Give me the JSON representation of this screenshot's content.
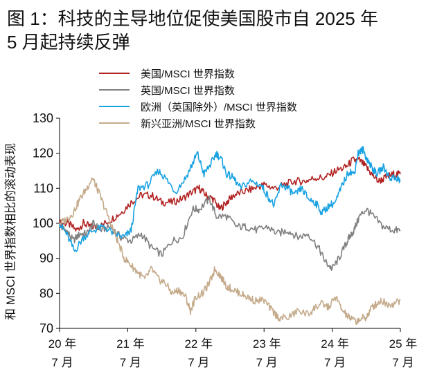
{
  "title": {
    "line1": "图 1：科技的主导地位促使美国股市自 2025 年",
    "line2": "5 月起持续反弹"
  },
  "chart_data": {
    "type": "line",
    "ylabel": "和 MSCI 世界指数相比的滚动表现",
    "ylim": [
      70,
      130
    ],
    "yticks": [
      70,
      80,
      90,
      100,
      110,
      120,
      130
    ],
    "xlim": [
      2020.5,
      2025.5
    ],
    "xticks": [
      {
        "x": 2020.5,
        "line1": "20 年",
        "line2": "7 月"
      },
      {
        "x": 2021.5,
        "line1": "21 年",
        "line2": "7 月"
      },
      {
        "x": 2022.5,
        "line1": "22 年",
        "line2": "7 月"
      },
      {
        "x": 2023.5,
        "line1": "23 年",
        "line2": "7 月"
      },
      {
        "x": 2024.5,
        "line1": "24 年",
        "line2": "7 月"
      },
      {
        "x": 2025.5,
        "line1": "25 年",
        "line2": "7 月"
      }
    ],
    "legend_position": "top",
    "series": [
      {
        "name": "美国/MSCI 世界指数",
        "color": "#b22222",
        "points": [
          [
            2020.5,
            100
          ],
          [
            2020.62,
            100
          ],
          [
            2020.75,
            98
          ],
          [
            2020.85,
            100
          ],
          [
            2020.95,
            99
          ],
          [
            2021.08,
            99
          ],
          [
            2021.25,
            101
          ],
          [
            2021.4,
            103
          ],
          [
            2021.55,
            106
          ],
          [
            2021.7,
            108
          ],
          [
            2021.85,
            108
          ],
          [
            2022.0,
            106
          ],
          [
            2022.15,
            106
          ],
          [
            2022.3,
            107
          ],
          [
            2022.45,
            109
          ],
          [
            2022.55,
            110
          ],
          [
            2022.65,
            108
          ],
          [
            2022.75,
            107
          ],
          [
            2022.85,
            104
          ],
          [
            2022.95,
            106
          ],
          [
            2023.05,
            108
          ],
          [
            2023.2,
            109
          ],
          [
            2023.35,
            110
          ],
          [
            2023.5,
            111
          ],
          [
            2023.65,
            110
          ],
          [
            2023.8,
            111
          ],
          [
            2023.95,
            112
          ],
          [
            2024.1,
            112
          ],
          [
            2024.25,
            113
          ],
          [
            2024.4,
            113
          ],
          [
            2024.55,
            115
          ],
          [
            2024.7,
            116
          ],
          [
            2024.8,
            118
          ],
          [
            2024.9,
            118
          ],
          [
            2025.0,
            116
          ],
          [
            2025.08,
            114
          ],
          [
            2025.18,
            112
          ],
          [
            2025.28,
            113
          ],
          [
            2025.4,
            114
          ],
          [
            2025.5,
            114
          ]
        ]
      },
      {
        "name": "英国/MSCI 世界指数",
        "color": "#7f7f7f",
        "points": [
          [
            2020.5,
            99
          ],
          [
            2020.6,
            98
          ],
          [
            2020.7,
            95
          ],
          [
            2020.8,
            97
          ],
          [
            2020.9,
            97
          ],
          [
            2021.0,
            100
          ],
          [
            2021.1,
            98
          ],
          [
            2021.25,
            99
          ],
          [
            2021.4,
            96
          ],
          [
            2021.55,
            95
          ],
          [
            2021.7,
            97
          ],
          [
            2021.85,
            93
          ],
          [
            2022.0,
            91
          ],
          [
            2022.15,
            95
          ],
          [
            2022.3,
            96
          ],
          [
            2022.45,
            104
          ],
          [
            2022.55,
            104
          ],
          [
            2022.7,
            107
          ],
          [
            2022.8,
            102
          ],
          [
            2022.95,
            102
          ],
          [
            2023.1,
            99
          ],
          [
            2023.25,
            99
          ],
          [
            2023.4,
            98
          ],
          [
            2023.55,
            99
          ],
          [
            2023.7,
            97
          ],
          [
            2023.85,
            98
          ],
          [
            2024.0,
            96
          ],
          [
            2024.15,
            97
          ],
          [
            2024.3,
            93
          ],
          [
            2024.4,
            89
          ],
          [
            2024.5,
            87
          ],
          [
            2024.6,
            90
          ],
          [
            2024.7,
            94
          ],
          [
            2024.75,
            96
          ],
          [
            2024.82,
            98
          ],
          [
            2024.9,
            102
          ],
          [
            2025.0,
            104
          ],
          [
            2025.1,
            102
          ],
          [
            2025.25,
            99
          ],
          [
            2025.4,
            98
          ],
          [
            2025.5,
            98
          ]
        ]
      },
      {
        "name": "欧洲（英国除外）/MSCI 世界指数",
        "color": "#19a2e2",
        "points": [
          [
            2020.5,
            100
          ],
          [
            2020.6,
            97
          ],
          [
            2020.72,
            92
          ],
          [
            2020.85,
            96
          ],
          [
            2021.0,
            98
          ],
          [
            2021.15,
            99
          ],
          [
            2021.3,
            97
          ],
          [
            2021.45,
            96
          ],
          [
            2021.55,
            98
          ],
          [
            2021.65,
            110
          ],
          [
            2021.8,
            111
          ],
          [
            2021.95,
            115
          ],
          [
            2022.05,
            113
          ],
          [
            2022.2,
            109
          ],
          [
            2022.35,
            113
          ],
          [
            2022.45,
            117
          ],
          [
            2022.52,
            120
          ],
          [
            2022.62,
            114
          ],
          [
            2022.72,
            117
          ],
          [
            2022.8,
            120
          ],
          [
            2022.88,
            118
          ],
          [
            2022.95,
            114
          ],
          [
            2023.05,
            113
          ],
          [
            2023.15,
            110
          ],
          [
            2023.3,
            112
          ],
          [
            2023.45,
            111
          ],
          [
            2023.55,
            108
          ],
          [
            2023.65,
            105
          ],
          [
            2023.75,
            111
          ],
          [
            2023.85,
            110
          ],
          [
            2023.95,
            108
          ],
          [
            2024.05,
            110
          ],
          [
            2024.15,
            107
          ],
          [
            2024.25,
            106
          ],
          [
            2024.35,
            103
          ],
          [
            2024.45,
            105
          ],
          [
            2024.55,
            106
          ],
          [
            2024.65,
            111
          ],
          [
            2024.75,
            115
          ],
          [
            2024.82,
            114
          ],
          [
            2024.88,
            120
          ],
          [
            2024.95,
            121
          ],
          [
            2025.02,
            118
          ],
          [
            2025.08,
            116
          ],
          [
            2025.15,
            114
          ],
          [
            2025.25,
            116
          ],
          [
            2025.35,
            113
          ],
          [
            2025.45,
            113
          ],
          [
            2025.5,
            112
          ]
        ]
      },
      {
        "name": "新兴亚洲/MSCI 世界指数",
        "color": "#c4aa8a",
        "points": [
          [
            2020.5,
            100
          ],
          [
            2020.6,
            101
          ],
          [
            2020.7,
            103
          ],
          [
            2020.8,
            107
          ],
          [
            2020.9,
            110
          ],
          [
            2020.98,
            113
          ],
          [
            2021.05,
            110
          ],
          [
            2021.15,
            105
          ],
          [
            2021.25,
            100
          ],
          [
            2021.35,
            95
          ],
          [
            2021.45,
            90
          ],
          [
            2021.55,
            88
          ],
          [
            2021.65,
            86
          ],
          [
            2021.75,
            84
          ],
          [
            2021.85,
            87
          ],
          [
            2021.95,
            84
          ],
          [
            2022.05,
            83
          ],
          [
            2022.15,
            80
          ],
          [
            2022.25,
            81
          ],
          [
            2022.35,
            79
          ],
          [
            2022.42,
            75
          ],
          [
            2022.5,
            79
          ],
          [
            2022.6,
            80
          ],
          [
            2022.7,
            83
          ],
          [
            2022.78,
            87
          ],
          [
            2022.86,
            85
          ],
          [
            2022.95,
            82
          ],
          [
            2023.05,
            81
          ],
          [
            2023.15,
            80
          ],
          [
            2023.25,
            79
          ],
          [
            2023.35,
            78
          ],
          [
            2023.5,
            78
          ],
          [
            2023.62,
            75
          ],
          [
            2023.72,
            73
          ],
          [
            2023.85,
            73
          ],
          [
            2024.0,
            75
          ],
          [
            2024.15,
            74
          ],
          [
            2024.25,
            76
          ],
          [
            2024.35,
            77
          ],
          [
            2024.45,
            76
          ],
          [
            2024.55,
            79
          ],
          [
            2024.65,
            75
          ],
          [
            2024.75,
            73
          ],
          [
            2024.85,
            72
          ],
          [
            2024.95,
            73
          ],
          [
            2025.0,
            73
          ],
          [
            2025.08,
            76
          ],
          [
            2025.15,
            77
          ],
          [
            2025.22,
            78
          ],
          [
            2025.3,
            77
          ],
          [
            2025.4,
            77
          ],
          [
            2025.5,
            78
          ]
        ]
      }
    ]
  }
}
